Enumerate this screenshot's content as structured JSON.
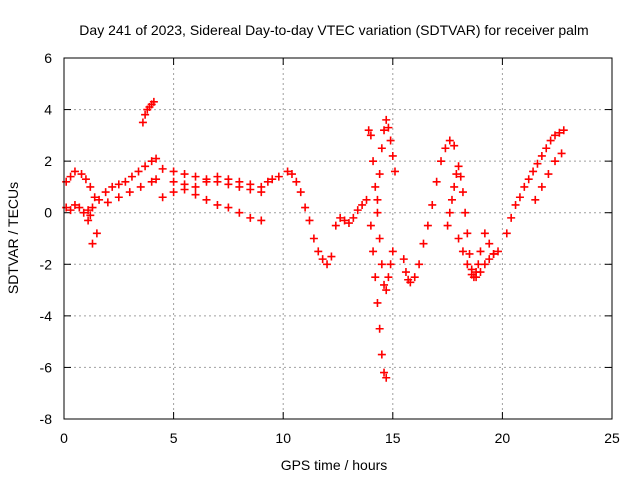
{
  "chart_data": {
    "type": "scatter",
    "title": "Day 241 of 2023, Sidereal Day-to-day VTEC variation (SDTVAR) for receiver palm",
    "xlabel": "GPS time / hours",
    "ylabel": "SDTVAR / TECUs",
    "xlim": [
      0,
      25
    ],
    "ylim": [
      -8,
      6
    ],
    "xticks": [
      0,
      5,
      10,
      15,
      20,
      25
    ],
    "yticks": [
      -8,
      -6,
      -4,
      -2,
      0,
      2,
      4,
      6
    ],
    "xtick_labels": [
      "0",
      "5",
      "10",
      "15",
      "20",
      "25"
    ],
    "ytick_labels": [
      "-8",
      "-6",
      "-4",
      "-2",
      "0",
      "2",
      "4",
      "6"
    ],
    "grid": true,
    "marker": "+",
    "color": "#ff0000",
    "series": [
      {
        "name": "SDTVAR",
        "x": [
          0.1,
          0.3,
          0.5,
          0.7,
          0.9,
          1.1,
          1.3,
          1.5,
          0.1,
          0.3,
          0.5,
          0.8,
          1.0,
          1.2,
          1.4,
          1.3,
          1.2,
          1.1,
          1.6,
          1.9,
          2.2,
          2.5,
          2.8,
          3.1,
          3.4,
          3.7,
          4.0,
          4.2,
          3.6,
          3.7,
          3.8,
          3.9,
          4.0,
          4.1,
          2.0,
          2.5,
          3.0,
          3.5,
          4.0,
          4.2,
          4.5,
          5.0,
          5.5,
          6.0,
          6.5,
          7.0,
          7.5,
          8.0,
          8.5,
          9.0,
          4.5,
          5.0,
          5.5,
          6.0,
          6.5,
          7.0,
          7.5,
          8.0,
          8.5,
          9.0,
          5.0,
          5.5,
          6.0,
          6.5,
          7.0,
          7.5,
          8.0,
          8.5,
          9.0,
          9.3,
          9.5,
          9.8,
          10.2,
          10.4,
          10.6,
          10.8,
          11.0,
          11.2,
          11.4,
          11.6,
          11.8,
          12.0,
          12.2,
          12.4,
          12.6,
          12.8,
          13.0,
          13.2,
          13.4,
          13.6,
          13.8,
          14.0,
          14.1,
          14.2,
          14.3,
          14.4,
          14.5,
          14.6,
          14.7,
          13.9,
          14.0,
          14.1,
          14.2,
          14.3,
          14.4,
          14.5,
          14.6,
          14.7,
          14.8,
          14.9,
          15.0,
          14.3,
          14.4,
          14.5,
          14.6,
          14.7,
          14.8,
          14.9,
          15.0,
          15.1,
          15.5,
          15.6,
          15.7,
          15.8,
          16.0,
          16.2,
          16.4,
          16.6,
          16.8,
          17.0,
          17.2,
          17.4,
          17.6,
          17.8,
          17.5,
          17.6,
          17.7,
          17.8,
          17.9,
          18.0,
          18.1,
          18.2,
          18.3,
          18.4,
          18.5,
          18.6,
          18.7,
          18.8,
          18.9,
          19.0,
          19.2,
          19.4,
          19.6,
          18.0,
          18.2,
          18.4,
          18.6,
          18.8,
          19.0,
          19.2,
          19.4,
          19.6,
          19.8,
          20.2,
          20.4,
          20.6,
          20.8,
          21.0,
          21.2,
          21.4,
          21.6,
          21.8,
          22.0,
          22.2,
          22.4,
          22.6,
          22.8,
          21.5,
          21.8,
          22.1,
          22.4,
          22.7
        ],
        "y": [
          0.2,
          0.1,
          0.3,
          0.2,
          0.0,
          -0.3,
          -1.2,
          -0.8,
          1.2,
          1.4,
          1.6,
          1.5,
          1.3,
          1.0,
          0.6,
          0.2,
          -0.1,
          0.1,
          0.5,
          0.8,
          1.0,
          1.1,
          1.2,
          1.4,
          1.6,
          1.8,
          2.0,
          2.1,
          3.5,
          3.8,
          4.0,
          4.1,
          4.2,
          4.3,
          0.4,
          0.6,
          0.8,
          1.0,
          1.2,
          1.3,
          1.7,
          1.6,
          1.5,
          1.4,
          1.3,
          1.2,
          1.1,
          1.0,
          0.9,
          0.8,
          0.6,
          0.8,
          0.9,
          0.7,
          0.5,
          0.3,
          0.2,
          0.0,
          -0.2,
          -0.3,
          1.2,
          1.1,
          1.0,
          1.2,
          1.4,
          1.3,
          1.2,
          1.1,
          1.0,
          1.2,
          1.3,
          1.4,
          1.6,
          1.5,
          1.2,
          0.8,
          0.2,
          -0.3,
          -1.0,
          -1.5,
          -1.8,
          -2.0,
          -1.7,
          -0.5,
          -0.2,
          -0.3,
          -0.4,
          -0.2,
          0.1,
          0.3,
          0.5,
          -0.5,
          -1.5,
          -2.5,
          -3.5,
          -4.5,
          -5.5,
          -6.2,
          -6.4,
          3.2,
          3.0,
          2.0,
          1.0,
          0.0,
          -1.0,
          -2.0,
          -2.8,
          -3.0,
          -2.5,
          -2.0,
          -1.5,
          0.5,
          1.5,
          2.5,
          3.2,
          3.6,
          3.3,
          2.8,
          2.2,
          1.6,
          -1.8,
          -2.3,
          -2.6,
          -2.7,
          -2.5,
          -2.0,
          -1.2,
          -0.5,
          0.3,
          1.2,
          2.0,
          2.5,
          2.8,
          2.6,
          -0.5,
          0.0,
          0.5,
          1.0,
          1.5,
          1.8,
          1.4,
          0.8,
          0.0,
          -0.8,
          -1.6,
          -2.2,
          -2.5,
          -2.3,
          -2.0,
          -1.5,
          -0.8,
          -1.2,
          -1.6,
          -1.0,
          -1.5,
          -2.0,
          -2.4,
          -2.5,
          -2.3,
          -2.0,
          -1.8,
          -1.6,
          -1.5,
          -0.8,
          -0.2,
          0.3,
          0.6,
          1.0,
          1.3,
          1.6,
          1.9,
          2.2,
          2.5,
          2.8,
          3.0,
          3.1,
          3.2,
          0.5,
          1.0,
          1.5,
          2.0,
          2.3
        ]
      }
    ]
  }
}
